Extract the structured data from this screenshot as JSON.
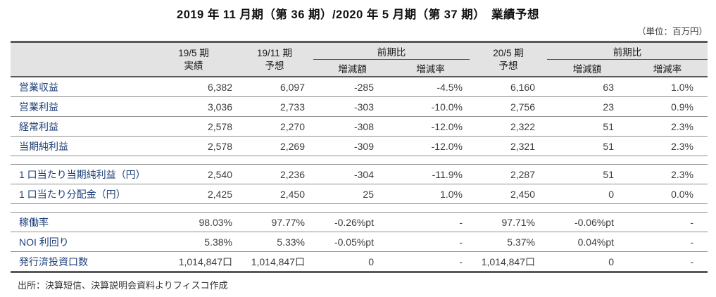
{
  "page": {
    "title": "2019 年 11 月期（第 36 期）/2020 年 5 月期（第 37 期）　業績予想",
    "unit_note": "（単位：百万円）",
    "source_note": "出所：決算短信、決算説明会資料よりフィスコ作成"
  },
  "colors": {
    "label_navy": "#1c3f78",
    "header_bg": "#e3e3e3",
    "border_dark": "#595959",
    "border_light": "#909090"
  },
  "table": {
    "header": {
      "col_19_5": {
        "line1": "19/5 期",
        "line2": "実績"
      },
      "col_19_11": {
        "line1": "19/11 期",
        "line2": "予想"
      },
      "col_20_5": {
        "line1": "20/5 期",
        "line2": "予想"
      },
      "group_yoy_1": {
        "title": "前期比",
        "sub_amount": "増減額",
        "sub_rate": "増減率"
      },
      "group_yoy_2": {
        "title": "前期比",
        "sub_amount": "増減額",
        "sub_rate": "増減率"
      }
    },
    "rows": [
      {
        "label": "営業収益",
        "values": [
          "6,382",
          "6,097",
          "-285",
          "-4.5%",
          "6,160",
          "63",
          "1.0%"
        ]
      },
      {
        "label": "営業利益",
        "values": [
          "3,036",
          "2,733",
          "-303",
          "-10.0%",
          "2,756",
          "23",
          "0.9%"
        ]
      },
      {
        "label": "経常利益",
        "values": [
          "2,578",
          "2,270",
          "-308",
          "-12.0%",
          "2,322",
          "51",
          "2.3%"
        ]
      },
      {
        "label": "当期純利益",
        "values": [
          "2,578",
          "2,269",
          "-309",
          "-12.0%",
          "2,321",
          "51",
          "2.3%"
        ]
      },
      {
        "label": "1 口当たり当期純利益（円）",
        "values": [
          "2,540",
          "2,236",
          "-304",
          "-11.9%",
          "2,287",
          "51",
          "2.3%"
        ]
      },
      {
        "label": "1 口当たり分配金（円）",
        "values": [
          "2,425",
          "2,450",
          "25",
          "1.0%",
          "2,450",
          "0",
          "0.0%"
        ]
      },
      {
        "label": "稼働率",
        "values": [
          "98.03%",
          "97.77%",
          "-0.26%pt",
          "-",
          "97.71%",
          "-0.06%pt",
          "-"
        ]
      },
      {
        "label": "NOI 利回り",
        "values": [
          "5.38%",
          "5.33%",
          "-0.05%pt",
          "-",
          "5.37%",
          "0.04%pt",
          "-"
        ]
      },
      {
        "label": "発行済投資口数",
        "values": [
          "1,014,847口",
          "1,014,847口",
          "0",
          "-",
          "1,014,847口",
          "0",
          "-"
        ]
      }
    ]
  }
}
